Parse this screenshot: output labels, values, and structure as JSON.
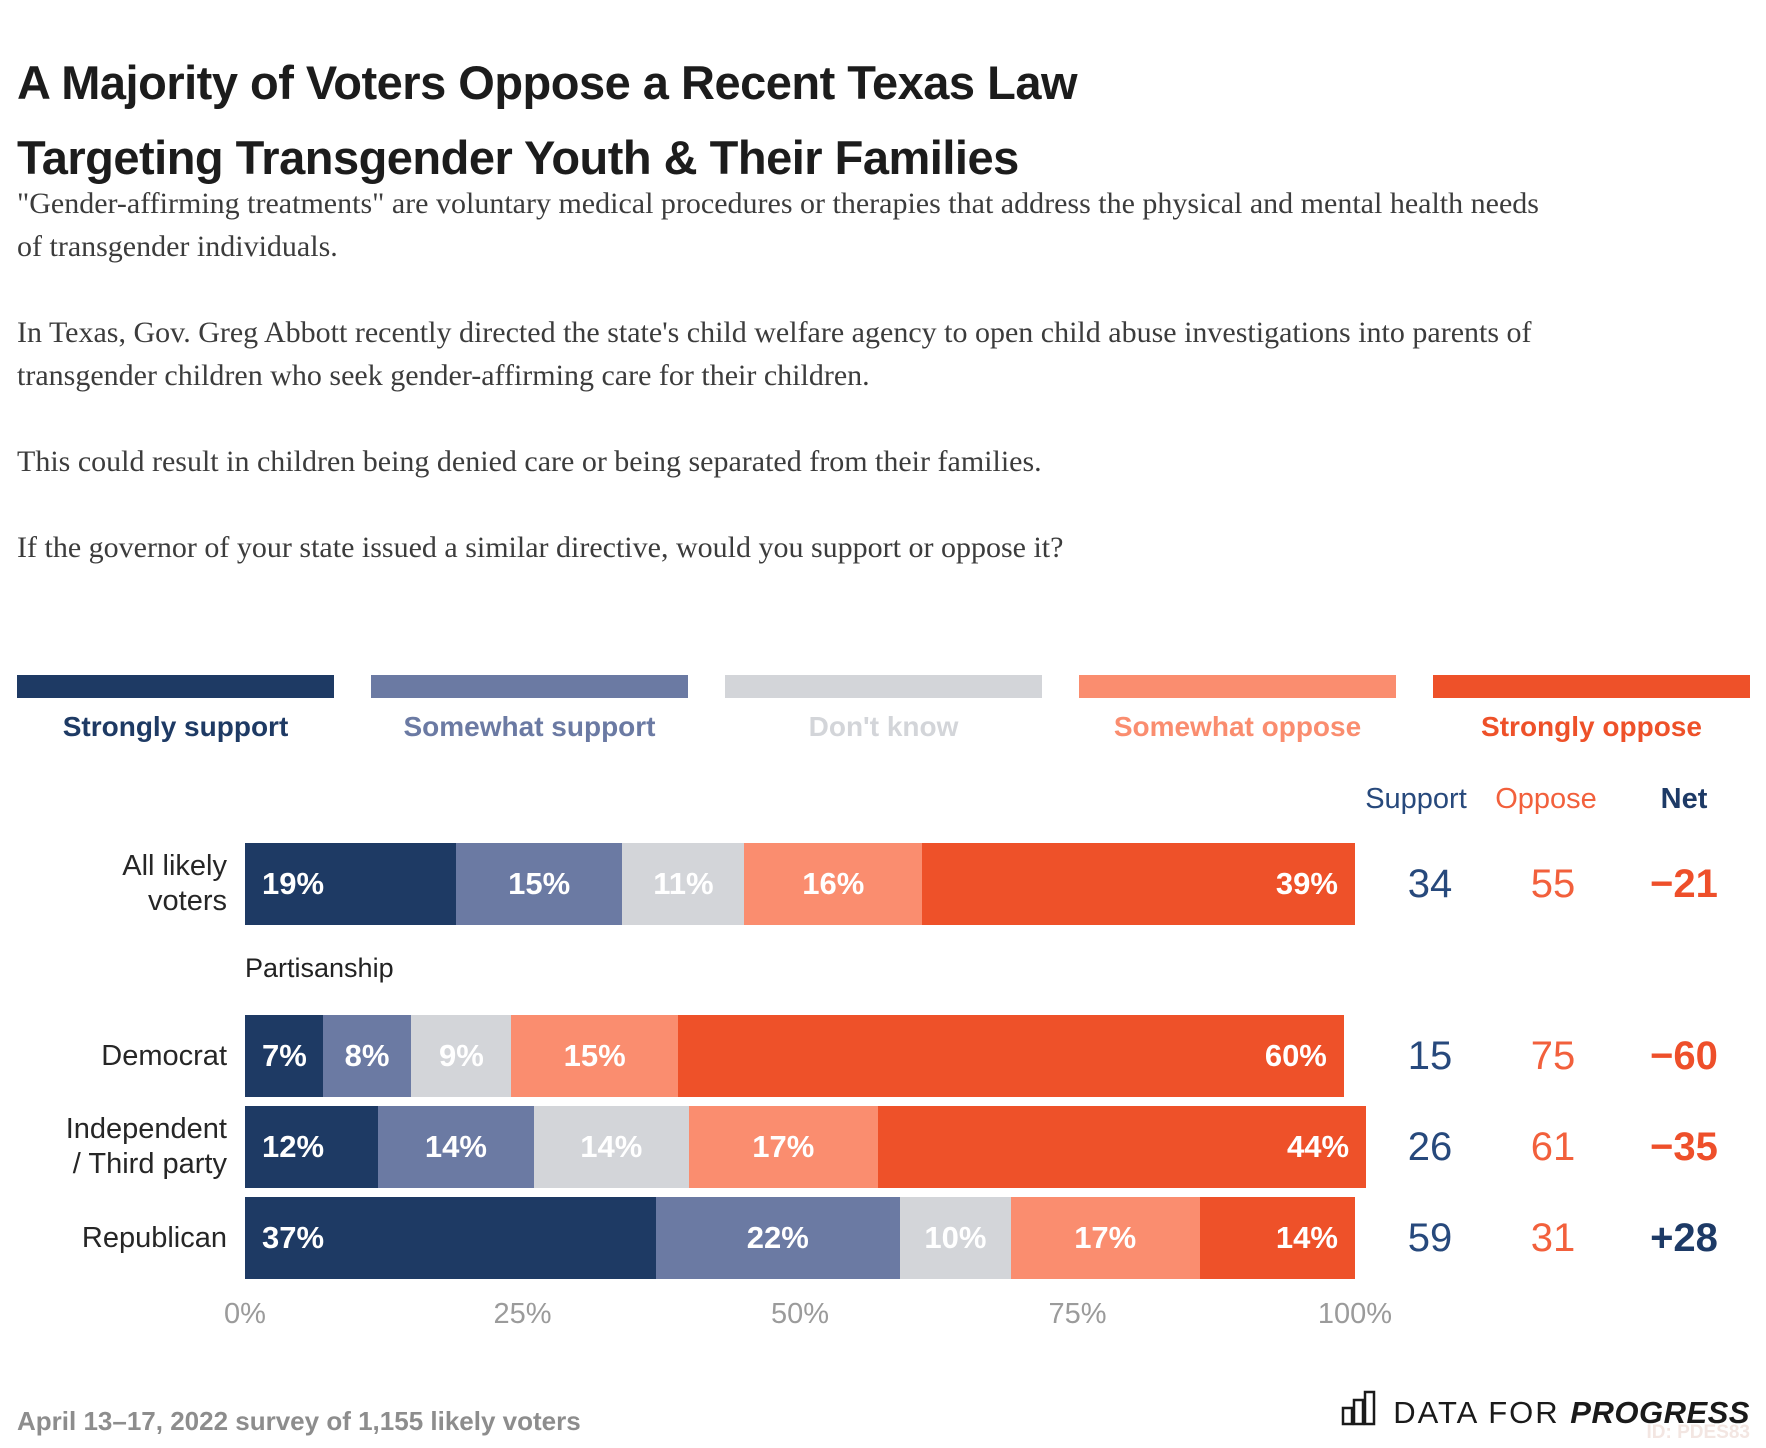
{
  "title": "A Majority of Voters Oppose a Recent Texas Law Targeting Transgender Youth & Their Families",
  "title_lines": [
    "A Majority of Voters Oppose a Recent Texas Law",
    "Targeting Transgender Youth & Their Families"
  ],
  "paragraphs": [
    "\"Gender-affirming treatments\" are voluntary medical procedures or therapies that address the physical and mental health needs of transgender individuals.",
    "In Texas, Gov. Greg Abbott recently directed the state's child welfare agency to open child abuse investigations into parents of transgender children who seek gender-affirming care for their children.",
    "This could result in children being denied care or being separated from their families.",
    "If the governor of your state issued a similar directive, would you support or oppose it?"
  ],
  "legend": [
    {
      "label": "Strongly support",
      "color": "#1e3a64"
    },
    {
      "label": "Somewhat support",
      "color": "#6b7aa3"
    },
    {
      "label": "Don't know",
      "color": "#d3d5d9"
    },
    {
      "label": "Somewhat oppose",
      "color": "#fa8d6f"
    },
    {
      "label": "Strongly oppose",
      "color": "#ee5129"
    }
  ],
  "columns": {
    "support": "Support",
    "oppose": "Oppose",
    "net": "Net"
  },
  "section_label": "Partisanship",
  "chart_data": {
    "type": "bar",
    "subtype": "horizontal-stacked",
    "categories": [
      "Strongly support",
      "Somewhat support",
      "Don't know",
      "Somewhat oppose",
      "Strongly oppose"
    ],
    "colors": [
      "#1e3a64",
      "#6b7aa3",
      "#d3d5d9",
      "#fa8d6f",
      "#ee5129"
    ],
    "xlim": [
      0,
      100
    ],
    "x_ticks": [
      "0%",
      "25%",
      "50%",
      "75%",
      "100%"
    ],
    "rows": [
      {
        "label": "All likely voters",
        "label_lines": [
          "All likely",
          "voters"
        ],
        "values": [
          19,
          15,
          11,
          16,
          39
        ],
        "support": 34,
        "oppose": 55,
        "net": "−21"
      },
      {
        "label": "Democrat",
        "label_lines": [
          "Democrat"
        ],
        "values": [
          7,
          8,
          9,
          15,
          60
        ],
        "support": 15,
        "oppose": 75,
        "net": "−60"
      },
      {
        "label": "Independent / Third party",
        "label_lines": [
          "Independent",
          "/ Third party"
        ],
        "values": [
          12,
          14,
          14,
          17,
          44
        ],
        "support": 26,
        "oppose": 61,
        "net": "−35"
      },
      {
        "label": "Republican",
        "label_lines": [
          "Republican"
        ],
        "values": [
          37,
          22,
          10,
          17,
          14
        ],
        "support": 59,
        "oppose": 31,
        "net": "+28"
      }
    ]
  },
  "footer": {
    "note": "April 13–17, 2022 survey of 1,155 likely voters",
    "logo_prefix": "DATA FOR",
    "logo_suffix": "PROGRESS",
    "chart_id": "ID: PDES83"
  }
}
